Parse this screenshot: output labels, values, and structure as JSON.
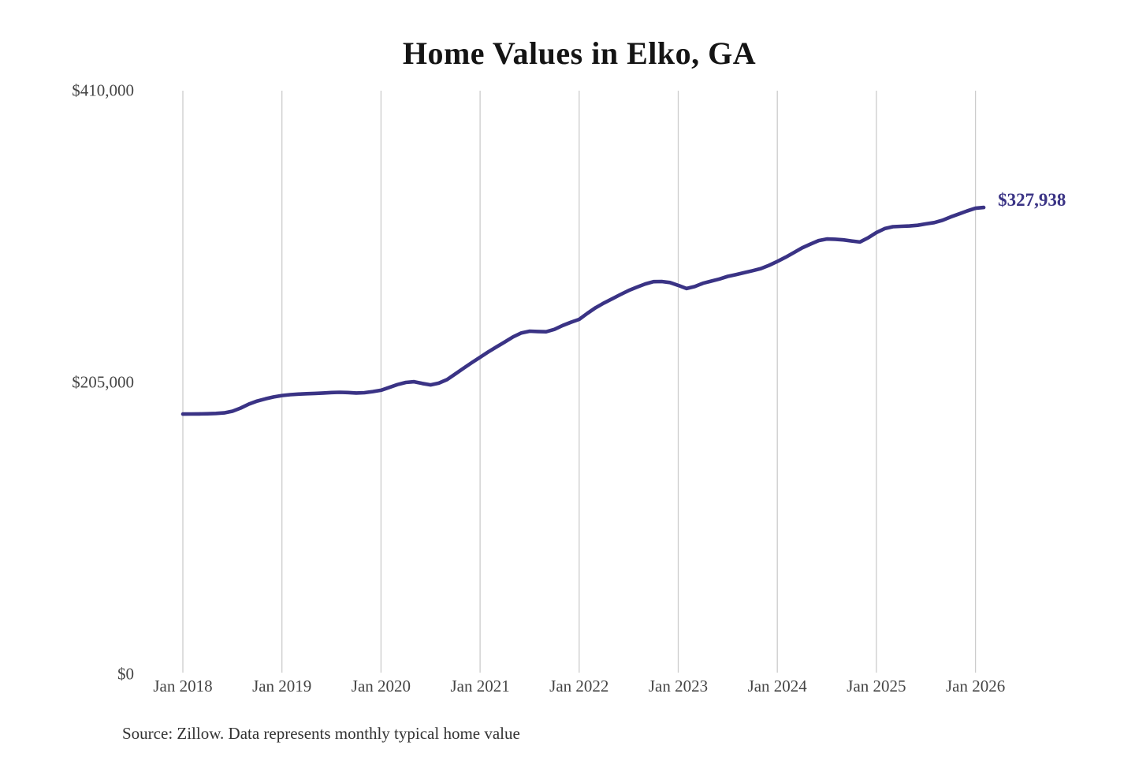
{
  "chart_data": {
    "type": "line",
    "title": "Home Values in Elko, GA",
    "xlabel": "",
    "ylabel": "",
    "ylim": [
      0,
      410000
    ],
    "grid": "vertical-only",
    "legend": "none",
    "x_tick_labels": [
      "Jan 2018",
      "Jan 2019",
      "Jan 2020",
      "Jan 2021",
      "Jan 2022",
      "Jan 2023",
      "Jan 2024",
      "Jan 2025",
      "Jan 2026"
    ],
    "y_ticks": [
      {
        "label": "$410,000",
        "value": 410000
      },
      {
        "label": "$205,000",
        "value": 205000
      },
      {
        "label": "$0",
        "value": 0
      }
    ],
    "line_color": "#3a3385",
    "gridline_color": "#cccccc",
    "end_label": "$327,938",
    "series": [
      {
        "name": "Monthly typical home value",
        "start_month": "2018-01",
        "frequency": "monthly",
        "values": [
          182800,
          182850,
          182900,
          183000,
          183200,
          183600,
          184800,
          187000,
          189800,
          191900,
          193500,
          194800,
          195800,
          196400,
          196800,
          197100,
          197300,
          197600,
          197900,
          198100,
          197900,
          197600,
          197800,
          198600,
          199500,
          201500,
          203500,
          205000,
          205500,
          204300,
          203300,
          204500,
          207000,
          211000,
          215000,
          218900,
          222700,
          226500,
          230000,
          233500,
          237000,
          239800,
          241000,
          240800,
          240600,
          242300,
          245000,
          247300,
          249300,
          253600,
          257500,
          260800,
          263800,
          266800,
          269600,
          272000,
          274200,
          275800,
          275900,
          275200,
          273200,
          271000,
          272400,
          274700,
          276200,
          277700,
          279500,
          280800,
          282100,
          283500,
          285000,
          287300,
          290000,
          293000,
          296200,
          299500,
          302200,
          304700,
          305800,
          305600,
          305200,
          304400,
          303700,
          306600,
          310300,
          313100,
          314400,
          314700,
          314900,
          315400,
          316400,
          317300,
          318900,
          321300,
          323400,
          325500,
          327400,
          327938
        ]
      }
    ]
  },
  "source_note": "Source: Zillow. Data represents monthly typical home value"
}
